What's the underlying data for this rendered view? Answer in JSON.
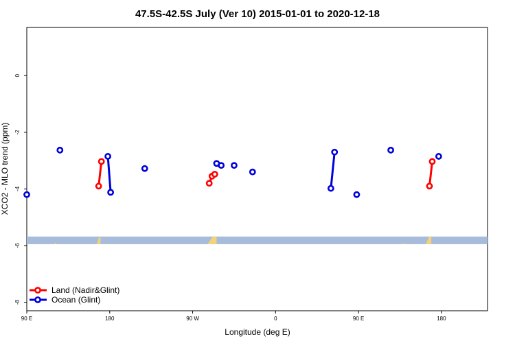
{
  "chart_data": {
    "type": "scatter",
    "title": "47.5S-42.5S July (Ver 10)   2015-01-01 to 2020-12-18",
    "xlabel": "Longitude (deg E)",
    "ylabel": "XCO2 - MLO trend (ppm)",
    "xlim": [
      90,
      590
    ],
    "ylim": [
      -8.3,
      1.7
    ],
    "x_ticks": [
      {
        "value": 90,
        "label": "90 E"
      },
      {
        "value": 180,
        "label": "180"
      },
      {
        "value": 270,
        "label": "90 W"
      },
      {
        "value": 360,
        "label": "0"
      },
      {
        "value": 450,
        "label": "90 E"
      },
      {
        "value": 540,
        "label": "180"
      }
    ],
    "y_ticks": [
      {
        "value": 0,
        "label": "0"
      },
      {
        "value": -2,
        "label": "-2"
      },
      {
        "value": -4,
        "label": "-4"
      },
      {
        "value": -6,
        "label": "-6"
      },
      {
        "value": -8,
        "label": "-8"
      }
    ],
    "grid": false,
    "legend_position": "bottom-left",
    "series": [
      {
        "name": "Land (Nadir&Glint)",
        "color": "#ff0000",
        "segments": [
          [
            [
              168.0,
              -3.9
            ],
            [
              171.0,
              -3.03
            ]
          ],
          [
            [
              288.0,
              -3.8
            ],
            [
              291.0,
              -3.55
            ],
            [
              294.0,
              -3.48
            ]
          ],
          [
            [
              527.0,
              -3.9
            ],
            [
              530.0,
              -3.03
            ]
          ]
        ]
      },
      {
        "name": "Ocean (Glint)",
        "color": "#0000dd",
        "segments": [
          [
            [
              90.0,
              -4.2
            ]
          ],
          [
            [
              126.0,
              -2.63
            ]
          ],
          [
            [
              178.0,
              -2.85
            ],
            [
              181.0,
              -4.12
            ]
          ],
          [
            [
              218.0,
              -3.28
            ]
          ],
          [
            [
              296.0,
              -3.1
            ]
          ],
          [
            [
              301.0,
              -3.17
            ]
          ],
          [
            [
              315.0,
              -3.17
            ]
          ],
          [
            [
              335.0,
              -3.4
            ]
          ],
          [
            [
              420.0,
              -3.98
            ],
            [
              424.0,
              -2.7
            ]
          ],
          [
            [
              448.0,
              -4.2
            ]
          ],
          [
            [
              485.0,
              -2.63
            ]
          ],
          [
            [
              537.0,
              -2.85
            ]
          ]
        ]
      }
    ],
    "land_band": {
      "y_range": [
        -5.95,
        -5.68
      ],
      "band_color": "#a7bcdb",
      "land_color": "#f3d27a"
    }
  }
}
